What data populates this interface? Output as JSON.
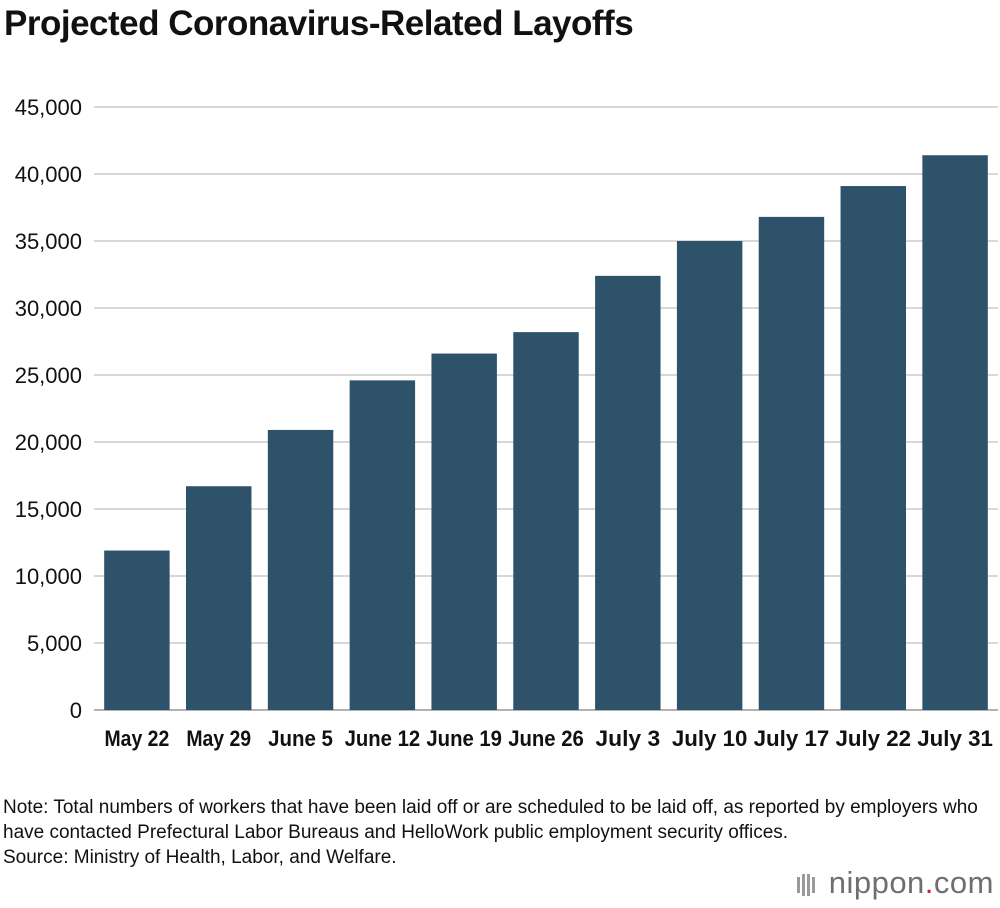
{
  "header": {
    "title": "Projected Coronavirus-Related Layoffs"
  },
  "chart_data": {
    "type": "bar",
    "title": "Projected Coronavirus-Related Layoffs",
    "xlabel": "",
    "ylabel": "",
    "categories": [
      "May 22",
      "May 29",
      "June 5",
      "June 12",
      "June 19",
      "June 26",
      "July 3",
      "July 10",
      "July 17",
      "July 22",
      "July 31"
    ],
    "values": [
      11900,
      16700,
      20900,
      24600,
      26600,
      28200,
      32400,
      35000,
      36800,
      39100,
      41400
    ],
    "ylim": [
      0,
      45000
    ],
    "yticks": [
      0,
      5000,
      10000,
      15000,
      20000,
      25000,
      30000,
      35000,
      40000,
      45000
    ],
    "ytick_labels": [
      "0",
      "5,000",
      "10,000",
      "15,000",
      "20,000",
      "25,000",
      "30,000",
      "35,000",
      "40,000",
      "45,000"
    ],
    "grid": true,
    "bar_color": "#2e5269",
    "grid_color": "#cccccc"
  },
  "footer": {
    "note": "Note: Total numbers of workers that have been laid off or are scheduled to be laid off, as reported by employers who have contacted Prefectural Labor Bureaus and HelloWork public employment security offices.",
    "source": "Source: Ministry of Health, Labor, and Welfare.",
    "brand_name": "nippon",
    "brand_dot": ".",
    "brand_tld": "com"
  }
}
